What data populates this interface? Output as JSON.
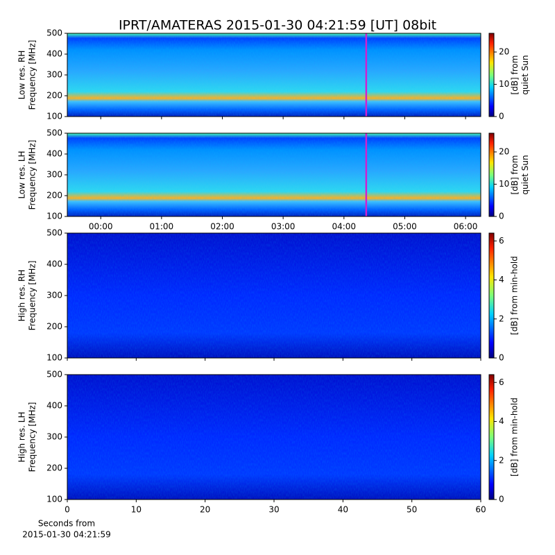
{
  "title": "IPRT/AMATERAS 2015-01-30 04:21:59 [UT]   08bit",
  "chart_data": [
    {
      "type": "heatmap",
      "ylabel": [
        "Low res. RH",
        "Frequency [MHz]"
      ],
      "ylim": [
        100,
        500
      ],
      "yticks": [
        100,
        200,
        300,
        400,
        500
      ],
      "xlim": [
        -0.55,
        6.25
      ],
      "xticks": [
        {
          "value": 0,
          "label": "00:00"
        },
        {
          "value": 1,
          "label": "01:00"
        },
        {
          "value": 2,
          "label": "02:00"
        },
        {
          "value": 3,
          "label": "03:00"
        },
        {
          "value": 4,
          "label": "04:00"
        },
        {
          "value": 5,
          "label": "05:00"
        },
        {
          "value": 6,
          "label": "06:00"
        }
      ],
      "show_xtick_labels": false,
      "cursor_x": 4.366,
      "cursor_color": "#d020d0",
      "clim": [
        0,
        25.8
      ],
      "cticks": [
        0,
        10,
        20
      ],
      "cmap": "jet",
      "clabel": [
        "[dB] from",
        "quiet Sun"
      ]
    },
    {
      "type": "heatmap",
      "ylabel": [
        "Low res. LH",
        "Frequency [MHz]"
      ],
      "ylim": [
        100,
        500
      ],
      "yticks": [
        100,
        200,
        300,
        400,
        500
      ],
      "xlim": [
        -0.55,
        6.25
      ],
      "xticks": [
        {
          "value": 0,
          "label": "00:00"
        },
        {
          "value": 1,
          "label": "01:00"
        },
        {
          "value": 2,
          "label": "02:00"
        },
        {
          "value": 3,
          "label": "03:00"
        },
        {
          "value": 4,
          "label": "04:00"
        },
        {
          "value": 5,
          "label": "05:00"
        },
        {
          "value": 6,
          "label": "06:00"
        }
      ],
      "show_xtick_labels": true,
      "cursor_x": 4.366,
      "cursor_color": "#d020d0",
      "clim": [
        0,
        25.8
      ],
      "cticks": [
        0,
        10,
        20
      ],
      "cmap": "jet",
      "clabel": [
        "[dB] from",
        "quiet Sun"
      ]
    },
    {
      "type": "heatmap",
      "ylabel": [
        "High res. RH",
        "Frequency [MHz]"
      ],
      "ylim": [
        100,
        500
      ],
      "yticks": [
        100,
        200,
        300,
        400,
        500
      ],
      "xlim": [
        0,
        60
      ],
      "xticks": [
        0,
        10,
        20,
        30,
        40,
        50,
        60
      ],
      "show_xtick_labels": false,
      "clim": [
        0,
        6.4
      ],
      "cticks": [
        0,
        2,
        4,
        6
      ],
      "cmap": "jet",
      "clabel": [
        "[dB] from min-hold"
      ]
    },
    {
      "type": "heatmap",
      "ylabel": [
        "High res. LH",
        "Frequency [MHz]"
      ],
      "ylim": [
        100,
        500
      ],
      "yticks": [
        100,
        200,
        300,
        400,
        500
      ],
      "xlim": [
        0,
        60
      ],
      "xticks": [
        0,
        10,
        20,
        30,
        40,
        50,
        60
      ],
      "show_xtick_labels": true,
      "xlabel": [
        "Seconds from",
        "2015-01-30 04:21:59"
      ],
      "clim": [
        0,
        6.4
      ],
      "cticks": [
        0,
        2,
        4,
        6
      ],
      "cmap": "jet",
      "clabel": [
        "[dB] from min-hold"
      ]
    }
  ]
}
